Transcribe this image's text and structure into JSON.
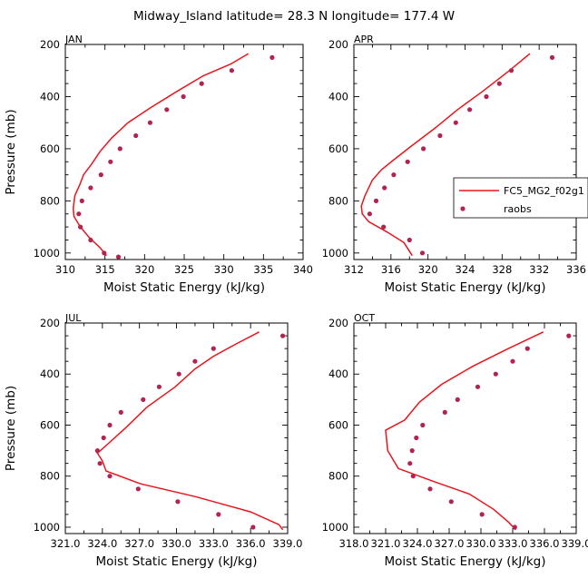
{
  "figure": {
    "title": "Midway_Island   latitude= 28.3 N longitude= 177.4 W",
    "colors": {
      "model": "#e8141c",
      "obs": "#b22450",
      "axis": "#000000"
    }
  },
  "legend": {
    "model_label": "FC5_MG2_f02g1",
    "obs_label": "raobs",
    "placement": "right, beside APR panel"
  },
  "chart_data": [
    {
      "type": "line",
      "title": "JAN",
      "xlabel": "Moist Static Energy (kJ/kg)",
      "ylabel": "Pressure (mb)",
      "xlim": [
        310,
        340
      ],
      "ylim": [
        1025,
        200
      ],
      "xticks": [
        "310",
        "315",
        "320",
        "325",
        "330",
        "335",
        "340"
      ],
      "yticks": [
        "200",
        "400",
        "600",
        "800",
        "1000"
      ],
      "series": [
        {
          "name": "FC5_MG2_f02g1",
          "kind": "line",
          "x": [
            333.1,
            330.9,
            327.4,
            324.1,
            320.9,
            317.9,
            315.8,
            314.4,
            313.3,
            312.3,
            311.8,
            311.2,
            311.0,
            311.1,
            311.9,
            313.0,
            314.4,
            315.2
          ],
          "y": [
            235,
            275,
            320,
            380,
            440,
            500,
            560,
            610,
            660,
            700,
            740,
            780,
            830,
            860,
            900,
            940,
            980,
            1010
          ]
        },
        {
          "name": "raobs",
          "kind": "scatter",
          "x": [
            336.1,
            331.0,
            327.2,
            324.9,
            322.8,
            320.7,
            318.9,
            316.9,
            315.7,
            314.5,
            313.2,
            312.1,
            311.7,
            311.9,
            313.2,
            314.9,
            316.7
          ],
          "y": [
            250,
            300,
            350,
            400,
            450,
            500,
            550,
            600,
            650,
            700,
            750,
            800,
            850,
            900,
            950,
            1000,
            1015
          ]
        }
      ]
    },
    {
      "type": "line",
      "title": "APR",
      "xlabel": "Moist Static Energy (kJ/kg)",
      "ylabel": "",
      "xlim": [
        312,
        336
      ],
      "ylim": [
        1025,
        200
      ],
      "xticks": [
        "312",
        "316",
        "320",
        "324",
        "328",
        "332",
        "336"
      ],
      "yticks": [
        "200",
        "400",
        "600",
        "800",
        "1000"
      ],
      "series": [
        {
          "name": "FC5_MG2_f02g1",
          "kind": "line",
          "x": [
            331.0,
            328.8,
            325.9,
            323.2,
            320.8,
            318.2,
            316.4,
            315.0,
            314.0,
            313.2,
            312.8,
            312.9,
            313.6,
            315.6,
            317.4,
            318.3
          ],
          "y": [
            235,
            300,
            380,
            450,
            520,
            590,
            640,
            680,
            720,
            780,
            820,
            850,
            880,
            920,
            960,
            1010
          ]
        },
        {
          "name": "raobs",
          "kind": "scatter",
          "x": [
            333.4,
            329.0,
            327.7,
            326.3,
            324.5,
            323.0,
            321.3,
            319.5,
            317.8,
            316.3,
            315.3,
            314.4,
            313.7,
            315.2,
            318.0,
            319.4
          ],
          "y": [
            250,
            300,
            350,
            400,
            450,
            500,
            550,
            600,
            650,
            700,
            750,
            800,
            850,
            900,
            950,
            1000
          ]
        }
      ]
    },
    {
      "type": "line",
      "title": "JUL",
      "xlabel": "Moist Static Energy (kJ/kg)",
      "ylabel": "Pressure (mb)",
      "xlim": [
        321,
        339
      ],
      "ylim": [
        1025,
        200
      ],
      "xticks": [
        "321.0",
        "324.0",
        "327.0",
        "330.0",
        "333.0",
        "336.0",
        "339.0"
      ],
      "yticks": [
        "200",
        "400",
        "600",
        "800",
        "1000"
      ],
      "series": [
        {
          "name": "FC5_MG2_f02g1",
          "kind": "line",
          "x": [
            336.7,
            334.9,
            333.0,
            331.5,
            329.9,
            327.6,
            325.9,
            324.3,
            323.6,
            324.0,
            324.3,
            327.1,
            331.5,
            336.0,
            338.3,
            338.6
          ],
          "y": [
            235,
            280,
            330,
            380,
            450,
            530,
            610,
            680,
            710,
            740,
            780,
            830,
            880,
            940,
            990,
            1010
          ]
        },
        {
          "name": "raobs",
          "kind": "scatter",
          "x": [
            338.6,
            333.0,
            331.5,
            330.2,
            328.6,
            327.3,
            325.5,
            324.6,
            324.1,
            323.6,
            323.8,
            324.6,
            326.9,
            330.1,
            333.4,
            336.2
          ],
          "y": [
            250,
            300,
            350,
            400,
            450,
            500,
            550,
            600,
            650,
            700,
            750,
            800,
            850,
            900,
            950,
            1000
          ]
        }
      ]
    },
    {
      "type": "line",
      "title": "OCT",
      "xlabel": "Moist Static Energy (kJ/kg)",
      "ylabel": "",
      "xlim": [
        318,
        339
      ],
      "ylim": [
        1025,
        200
      ],
      "xticks": [
        "318.0",
        "321.0",
        "324.0",
        "327.0",
        "330.0",
        "333.0",
        "336.0",
        "339.0"
      ],
      "yticks": [
        "200",
        "400",
        "600",
        "800",
        "1000"
      ],
      "series": [
        {
          "name": "FC5_MG2_f02g1",
          "kind": "line",
          "x": [
            335.9,
            332.6,
            329.2,
            326.3,
            324.2,
            322.8,
            321.0,
            321.2,
            322.2,
            325.5,
            328.9,
            331.2,
            332.6,
            333.3
          ],
          "y": [
            235,
            300,
            370,
            440,
            510,
            580,
            620,
            700,
            770,
            820,
            870,
            930,
            980,
            1010
          ]
        },
        {
          "name": "raobs",
          "kind": "scatter",
          "x": [
            338.3,
            334.4,
            333.0,
            331.4,
            329.7,
            327.8,
            326.6,
            324.5,
            323.9,
            323.5,
            323.3,
            323.6,
            325.2,
            327.2,
            330.1,
            333.2
          ],
          "y": [
            250,
            300,
            350,
            400,
            450,
            500,
            550,
            600,
            650,
            700,
            750,
            800,
            850,
            900,
            950,
            1000
          ]
        }
      ]
    }
  ]
}
